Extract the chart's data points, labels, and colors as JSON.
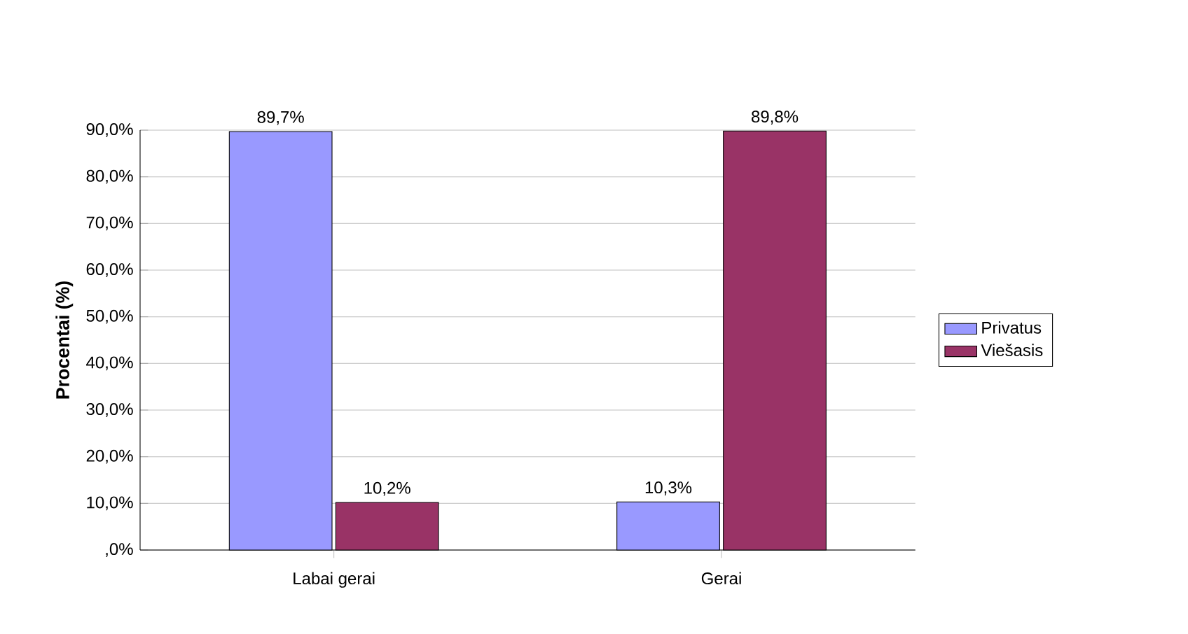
{
  "chart_data": {
    "type": "bar",
    "ylabel": "Procentai (%)",
    "categories": [
      "Labai gerai",
      "Gerai"
    ],
    "series": [
      {
        "name": "Privatus",
        "color": "#9999ff",
        "values": [
          89.7,
          10.3
        ],
        "value_labels": [
          "89,7%",
          "10,3%"
        ]
      },
      {
        "name": "Viešasis",
        "color": "#993366",
        "values": [
          10.2,
          89.8
        ],
        "value_labels": [
          "10,2%",
          "89,8%"
        ]
      }
    ],
    "ylim": [
      0,
      90
    ],
    "yticks": [
      {
        "value": 0,
        "label": ",0%"
      },
      {
        "value": 10,
        "label": "10,0%"
      },
      {
        "value": 20,
        "label": "20,0%"
      },
      {
        "value": 30,
        "label": "30,0%"
      },
      {
        "value": 40,
        "label": "40,0%"
      },
      {
        "value": 50,
        "label": "50,0%"
      },
      {
        "value": 60,
        "label": "60,0%"
      },
      {
        "value": 70,
        "label": "70,0%"
      },
      {
        "value": 80,
        "label": "80,0%"
      },
      {
        "value": 90,
        "label": "90,0%"
      }
    ],
    "grid": "y",
    "legend": "right"
  }
}
